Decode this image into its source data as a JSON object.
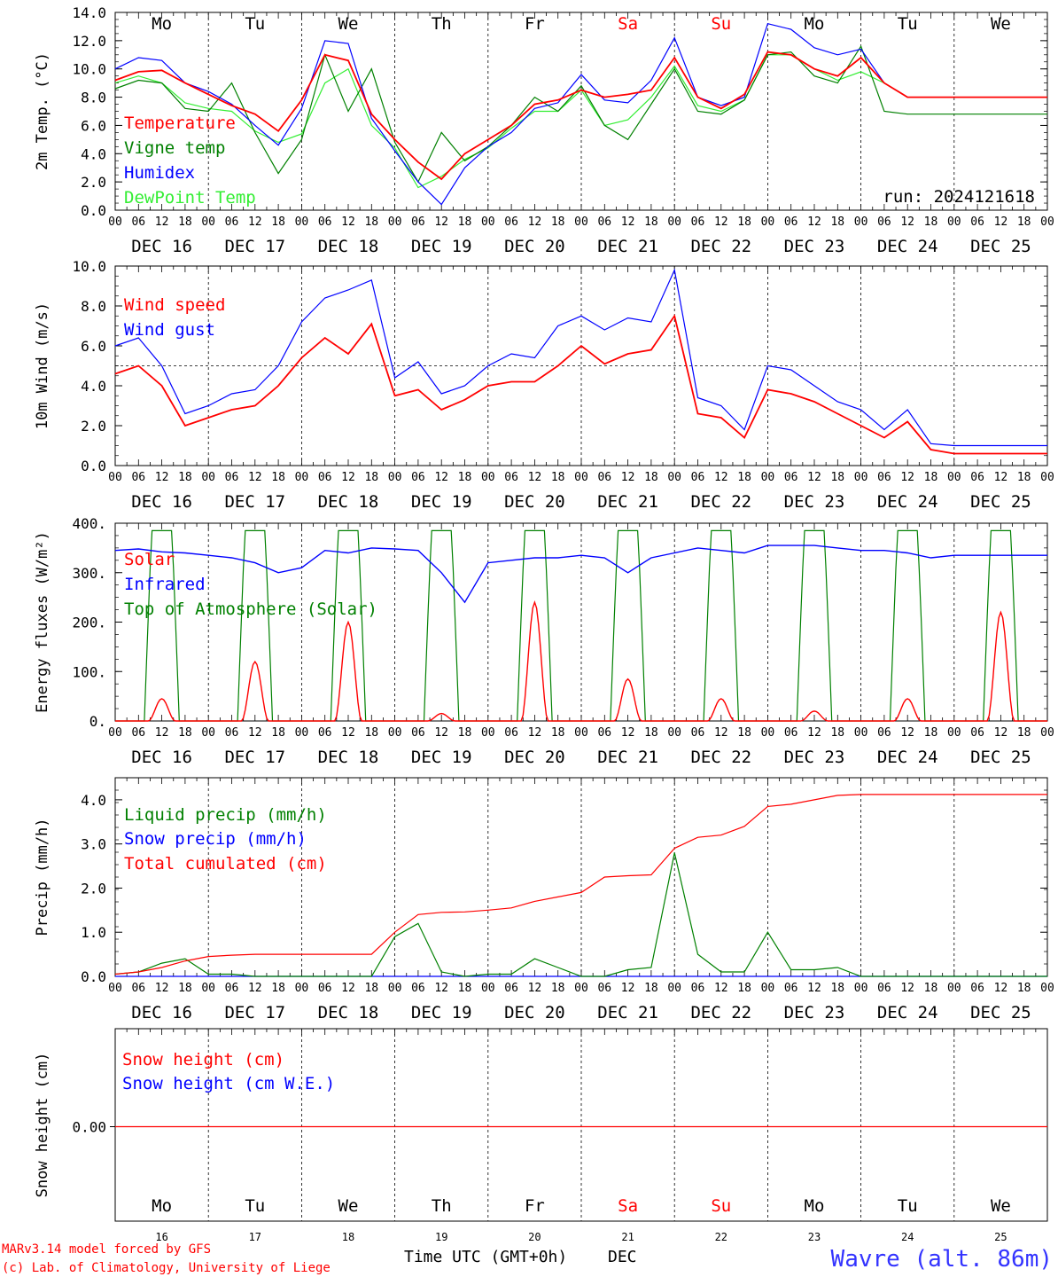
{
  "meteogram": {
    "run_label": "run: 2024121618",
    "days": [
      "Mo",
      "Tu",
      "We",
      "Th",
      "Fr",
      "Sa",
      "Su",
      "Mo",
      "Tu",
      "We"
    ],
    "weekend_flags": [
      false,
      false,
      false,
      false,
      false,
      true,
      true,
      false,
      false,
      false
    ],
    "dates": [
      "DEC 16",
      "DEC 17",
      "DEC 18",
      "DEC 19",
      "DEC 20",
      "DEC 21",
      "DEC 22",
      "DEC 23",
      "DEC 24",
      "DEC 25"
    ],
    "date_numbers": [
      "16",
      "17",
      "18",
      "19",
      "20",
      "21",
      "22",
      "23",
      "24",
      "25"
    ],
    "hour_ticks": [
      "00",
      "06",
      "12",
      "18"
    ],
    "final_hour_tick": "00",
    "footer": {
      "model": "MARv3.14 model forced by GFS",
      "credit": "(c) Lab. of Climatology, University of Liege",
      "xlabel": "Time UTC (GMT+0h)",
      "month": "DEC",
      "station": "Wavre (alt. 86m)"
    },
    "colors": {
      "red": "#ff0000",
      "green": "#008000",
      "blue": "#0000ff",
      "lightgreen": "#33ee33",
      "weekend": "#ff0000",
      "station": "#3333ff"
    }
  },
  "chart_data": [
    {
      "type": "line",
      "ylabel": "2m Temp. (°C)",
      "ylim": [
        0,
        14
      ],
      "yticks": [
        "0.0",
        "2.0",
        "4.0",
        "6.0",
        "8.0",
        "10.0",
        "12.0",
        "14.0"
      ],
      "x_hours": [
        0,
        6,
        12,
        18,
        24,
        30,
        36,
        42,
        48,
        54,
        60,
        66,
        72,
        78,
        84,
        90,
        96,
        102,
        108,
        114,
        120,
        126,
        132,
        138,
        144,
        150,
        156,
        162,
        168,
        174,
        180,
        186,
        192,
        198,
        204,
        210,
        216,
        222,
        228,
        234,
        240
      ],
      "series": [
        {
          "name": "Temperature",
          "color": "#ff0000",
          "values": [
            9.2,
            9.8,
            9.9,
            9.0,
            8.2,
            7.4,
            6.8,
            5.6,
            7.8,
            11.0,
            10.6,
            6.8,
            5.0,
            3.4,
            2.2,
            4.0,
            5.0,
            6.0,
            7.5,
            7.8,
            8.5,
            8.0,
            8.2,
            8.5,
            10.8,
            8.0,
            7.2,
            8.2,
            11.2,
            11.0,
            10.0,
            9.5,
            10.8,
            9.0,
            8.0,
            8.0,
            8.0,
            8.0,
            8.0,
            8.0,
            8.0
          ]
        },
        {
          "name": "Vigne temp",
          "color": "#008000",
          "values": [
            8.6,
            9.2,
            9.0,
            7.2,
            7.0,
            9.0,
            5.5,
            2.6,
            5.0,
            11.0,
            7.0,
            10.0,
            4.8,
            2.0,
            5.5,
            3.5,
            4.5,
            6.0,
            8.0,
            7.0,
            8.8,
            6.0,
            5.0,
            7.5,
            10.0,
            7.0,
            6.8,
            7.8,
            11.0,
            11.2,
            9.5,
            9.0,
            11.6,
            7.0,
            6.8,
            6.8,
            6.8,
            6.8,
            6.8,
            6.8,
            6.8
          ]
        },
        {
          "name": "Humidex",
          "color": "#0000ff",
          "values": [
            10.0,
            10.8,
            10.6,
            9.0,
            8.4,
            7.5,
            6.0,
            4.6,
            7.2,
            12.0,
            11.8,
            6.5,
            4.2,
            2.0,
            0.4,
            3.0,
            4.5,
            5.5,
            7.2,
            7.6,
            9.6,
            7.8,
            7.6,
            9.2,
            12.2,
            8.0,
            7.4,
            8.0,
            13.2,
            12.8,
            11.5,
            11.0,
            11.4,
            9.0,
            8.0,
            8.0,
            8.0,
            8.0,
            8.0,
            8.0,
            8.0
          ]
        },
        {
          "name": "DewPoint Temp",
          "color": "#33ee33",
          "values": [
            9.0,
            9.5,
            9.0,
            7.6,
            7.2,
            7.0,
            5.6,
            4.8,
            5.4,
            9.0,
            10.0,
            6.0,
            4.4,
            1.6,
            2.4,
            3.6,
            4.4,
            5.8,
            7.0,
            7.0,
            8.5,
            6.0,
            6.4,
            8.0,
            10.2,
            7.4,
            7.0,
            7.8,
            11.0,
            11.0,
            10.0,
            9.2,
            9.8,
            9.0,
            8.0,
            8.0,
            8.0,
            8.0,
            8.0,
            8.0,
            8.0
          ]
        }
      ]
    },
    {
      "type": "line",
      "ylabel": "10m Wind (m/s)",
      "ylim": [
        0,
        10
      ],
      "yticks": [
        "0.0",
        "2.0",
        "4.0",
        "6.0",
        "8.0",
        "10.0"
      ],
      "reference_line": 5,
      "x_hours": [
        0,
        6,
        12,
        18,
        24,
        30,
        36,
        42,
        48,
        54,
        60,
        66,
        72,
        78,
        84,
        90,
        96,
        102,
        108,
        114,
        120,
        126,
        132,
        138,
        144,
        150,
        156,
        162,
        168,
        174,
        180,
        186,
        192,
        198,
        204,
        210,
        216,
        222,
        228,
        234,
        240
      ],
      "series": [
        {
          "name": "Wind speed",
          "color": "#ff0000",
          "values": [
            4.6,
            5.0,
            4.0,
            2.0,
            2.4,
            2.8,
            3.0,
            4.0,
            5.4,
            6.4,
            5.6,
            7.1,
            3.5,
            3.8,
            2.8,
            3.3,
            4.0,
            4.2,
            4.2,
            5.0,
            6.0,
            5.1,
            5.6,
            5.8,
            7.5,
            2.6,
            2.4,
            1.4,
            3.8,
            3.6,
            3.2,
            2.6,
            2.0,
            1.4,
            2.2,
            0.8,
            0.6,
            0.6,
            0.6,
            0.6,
            0.6
          ]
        },
        {
          "name": "Wind gust",
          "color": "#0000ff",
          "values": [
            6.0,
            6.4,
            5.0,
            2.6,
            3.0,
            3.6,
            3.8,
            5.0,
            7.2,
            8.4,
            8.8,
            9.3,
            4.4,
            5.2,
            3.6,
            4.0,
            5.0,
            5.6,
            5.4,
            7.0,
            7.5,
            6.8,
            7.4,
            7.2,
            9.8,
            3.4,
            3.0,
            1.8,
            5.0,
            4.8,
            4.0,
            3.2,
            2.8,
            1.8,
            2.8,
            1.1,
            1.0,
            1.0,
            1.0,
            1.0,
            1.0
          ]
        }
      ]
    },
    {
      "type": "line",
      "ylabel": "Energy fluxes (W/m²)",
      "ylim": [
        0,
        400
      ],
      "yticks": [
        "0.",
        "100.",
        "200.",
        "300.",
        "400."
      ],
      "x_hours": [
        0,
        6,
        12,
        18,
        24,
        30,
        36,
        42,
        48,
        54,
        60,
        66,
        72,
        78,
        84,
        90,
        96,
        102,
        108,
        114,
        120,
        126,
        132,
        138,
        144,
        150,
        156,
        162,
        168,
        174,
        180,
        186,
        192,
        198,
        204,
        210,
        216,
        222,
        228,
        234,
        240
      ],
      "series": [
        {
          "name": "Solar",
          "peaks_w_m2": [
            45,
            120,
            200,
            15,
            240,
            85,
            45,
            20,
            45,
            220
          ],
          "color": "#ff0000"
        },
        {
          "name": "Infrared",
          "color": "#0000ff",
          "values": [
            345,
            348,
            342,
            340,
            335,
            330,
            320,
            300,
            310,
            345,
            340,
            350,
            348,
            345,
            300,
            240,
            320,
            325,
            330,
            330,
            335,
            330,
            300,
            330,
            340,
            350,
            345,
            340,
            355,
            355,
            355,
            350,
            345,
            345,
            340,
            330,
            335,
            335,
            335,
            335,
            335
          ]
        },
        {
          "name": "Top of Atmosphere (Solar)",
          "peak_w_m2": 385,
          "color": "#008000"
        }
      ]
    },
    {
      "type": "line",
      "ylabel": "Precip (mm/h)",
      "ylim": [
        0,
        4.5
      ],
      "yticks": [
        "0.0",
        "1.0",
        "2.0",
        "3.0",
        "4.0"
      ],
      "x_hours": [
        0,
        6,
        12,
        18,
        24,
        30,
        36,
        42,
        48,
        54,
        60,
        66,
        72,
        78,
        84,
        90,
        96,
        102,
        108,
        114,
        120,
        126,
        132,
        138,
        144,
        150,
        156,
        162,
        168,
        174,
        180,
        186,
        192,
        198,
        204,
        210,
        216,
        222,
        228,
        234,
        240
      ],
      "series": [
        {
          "name": "Liquid precip (mm/h)",
          "color": "#008000",
          "values": [
            0.05,
            0.1,
            0.3,
            0.4,
            0.05,
            0.05,
            0.0,
            0.0,
            0.0,
            0.0,
            0.0,
            0.0,
            0.9,
            1.2,
            0.1,
            0.0,
            0.05,
            0.05,
            0.4,
            0.2,
            0.0,
            0.0,
            0.15,
            0.2,
            2.8,
            0.5,
            0.1,
            0.1,
            1.0,
            0.15,
            0.15,
            0.2,
            0.0,
            0.0,
            0.0,
            0.0,
            0.0,
            0.0,
            0.0,
            0.0,
            0.0
          ]
        },
        {
          "name": "Snow precip (mm/h)",
          "color": "#0000ff",
          "values": [
            0,
            0,
            0,
            0,
            0,
            0,
            0,
            0,
            0,
            0,
            0,
            0,
            0,
            0,
            0,
            0,
            0,
            0,
            0,
            0,
            0,
            0,
            0,
            0,
            0,
            0,
            0,
            0,
            0,
            0,
            0,
            0,
            0,
            0,
            0,
            0,
            0,
            0,
            0,
            0,
            0
          ]
        },
        {
          "name": "Total cumulated (cm)",
          "color": "#ff0000",
          "values": [
            0.05,
            0.1,
            0.2,
            0.35,
            0.45,
            0.48,
            0.5,
            0.5,
            0.5,
            0.5,
            0.5,
            0.5,
            1.0,
            1.4,
            1.45,
            1.46,
            1.5,
            1.55,
            1.7,
            1.8,
            1.9,
            2.25,
            2.28,
            2.3,
            2.9,
            3.15,
            3.2,
            3.4,
            3.85,
            3.9,
            4.0,
            4.1,
            4.12,
            4.12,
            4.12,
            4.12,
            4.12,
            4.12,
            4.12,
            4.12,
            4.12
          ]
        }
      ]
    },
    {
      "type": "line",
      "ylabel": "Snow height (cm)",
      "yticks": [
        "0.00"
      ],
      "series": [
        {
          "name": "Snow height (cm)",
          "color": "#ff0000",
          "values": [
            0,
            0,
            0,
            0,
            0,
            0,
            0,
            0,
            0,
            0,
            0
          ]
        },
        {
          "name": "Snow height (cm W.E.)",
          "color": "#0000ff",
          "values": [
            0,
            0,
            0,
            0,
            0,
            0,
            0,
            0,
            0,
            0,
            0
          ]
        }
      ]
    }
  ]
}
